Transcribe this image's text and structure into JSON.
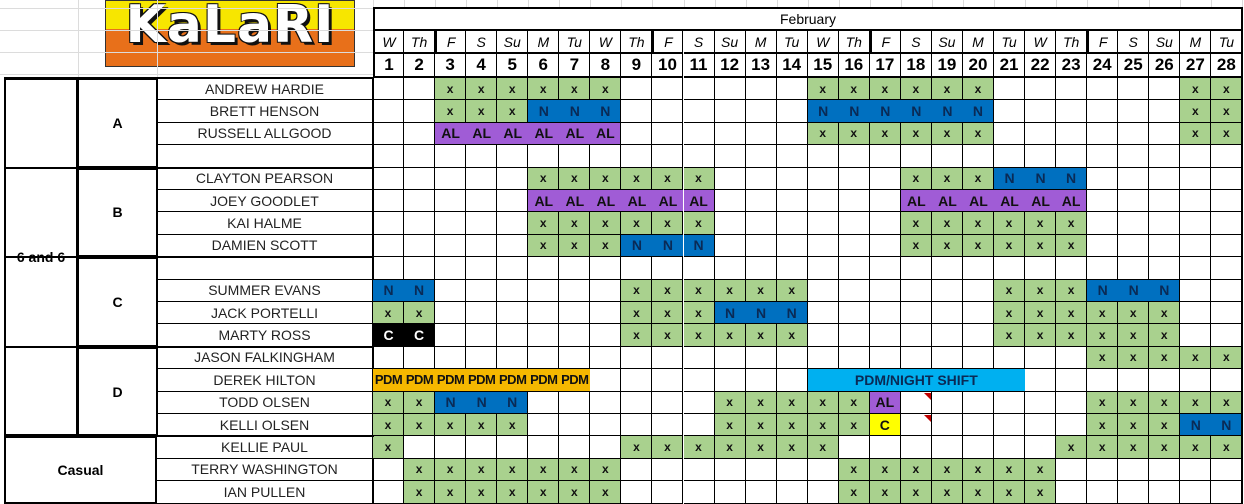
{
  "logo_text": "KaLaRI",
  "month": "February",
  "days_of_week": [
    "W",
    "Th",
    "F",
    "S",
    "Su",
    "M",
    "Tu",
    "W",
    "Th",
    "F",
    "S",
    "Su",
    "M",
    "Tu",
    "W",
    "Th",
    "F",
    "S",
    "Su",
    "M",
    "Tu",
    "W",
    "Th",
    "F",
    "S",
    "Su",
    "M",
    "Tu"
  ],
  "day_numbers": [
    "1",
    "2",
    "3",
    "4",
    "5",
    "6",
    "7",
    "8",
    "9",
    "10",
    "11",
    "12",
    "13",
    "14",
    "15",
    "16",
    "17",
    "18",
    "19",
    "20",
    "21",
    "22",
    "23",
    "24",
    "25",
    "26",
    "27",
    "28"
  ],
  "colors": {
    "x": "#a9d18e",
    "N": "#0070c0",
    "AL": "#a05cd6",
    "PDM": "#f5b800",
    "PDM_NIGHT": "#00b0f0",
    "C_black": "#000000",
    "C_yellow": "#ffff00",
    "comment": "#c00000"
  },
  "groups": [
    {
      "label": "6 and 6",
      "rows": [
        0,
        15
      ]
    },
    {
      "label": "Casual",
      "rows": [
        16,
        18
      ]
    }
  ],
  "teams": [
    {
      "label": "A",
      "rows": [
        0,
        3
      ]
    },
    {
      "label": "B",
      "rows": [
        4,
        7
      ]
    },
    {
      "label": "C",
      "rows": [
        8,
        11
      ]
    },
    {
      "label": "D",
      "rows": [
        12,
        15
      ]
    }
  ],
  "rows": [
    {
      "name": "ANDREW HARDIE",
      "runs": [
        {
          "from": 3,
          "to": 8,
          "v": "x",
          "c": "x"
        },
        {
          "from": 15,
          "to": 20,
          "v": "x",
          "c": "x"
        },
        {
          "from": 27,
          "to": 28,
          "v": "x",
          "c": "x"
        }
      ]
    },
    {
      "name": "BRETT HENSON",
      "runs": [
        {
          "from": 3,
          "to": 5,
          "v": "x",
          "c": "x"
        },
        {
          "from": 6,
          "to": 8,
          "v": "N",
          "c": "N"
        },
        {
          "from": 15,
          "to": 20,
          "v": "N",
          "c": "N"
        },
        {
          "from": 27,
          "to": 28,
          "v": "x",
          "c": "x"
        }
      ]
    },
    {
      "name": "RUSSELL ALLGOOD",
      "runs": [
        {
          "from": 3,
          "to": 8,
          "v": "AL",
          "c": "AL"
        },
        {
          "from": 15,
          "to": 20,
          "v": "x",
          "c": "x"
        },
        {
          "from": 27,
          "to": 28,
          "v": "x",
          "c": "x"
        }
      ]
    },
    {
      "name": "",
      "runs": []
    },
    {
      "name": "CLAYTON PEARSON",
      "runs": [
        {
          "from": 6,
          "to": 11,
          "v": "x",
          "c": "x"
        },
        {
          "from": 18,
          "to": 20,
          "v": "x",
          "c": "x"
        },
        {
          "from": 21,
          "to": 23,
          "v": "N",
          "c": "N"
        }
      ]
    },
    {
      "name": "JOEY GOODLET",
      "runs": [
        {
          "from": 6,
          "to": 11,
          "v": "AL",
          "c": "AL"
        },
        {
          "from": 18,
          "to": 23,
          "v": "AL",
          "c": "AL"
        }
      ]
    },
    {
      "name": "KAI HALME",
      "runs": [
        {
          "from": 6,
          "to": 11,
          "v": "x",
          "c": "x"
        },
        {
          "from": 18,
          "to": 23,
          "v": "x",
          "c": "x"
        }
      ]
    },
    {
      "name": "DAMIEN SCOTT",
      "runs": [
        {
          "from": 6,
          "to": 8,
          "v": "x",
          "c": "x"
        },
        {
          "from": 9,
          "to": 11,
          "v": "N",
          "c": "N"
        },
        {
          "from": 18,
          "to": 23,
          "v": "x",
          "c": "x"
        }
      ]
    },
    {
      "name": "",
      "runs": []
    },
    {
      "name": "SUMMER EVANS",
      "runs": [
        {
          "from": 1,
          "to": 2,
          "v": "N",
          "c": "N"
        },
        {
          "from": 9,
          "to": 14,
          "v": "x",
          "c": "x"
        },
        {
          "from": 21,
          "to": 23,
          "v": "x",
          "c": "x"
        },
        {
          "from": 24,
          "to": 26,
          "v": "N",
          "c": "N"
        }
      ]
    },
    {
      "name": "JACK PORTELLI",
      "runs": [
        {
          "from": 1,
          "to": 2,
          "v": "x",
          "c": "x"
        },
        {
          "from": 9,
          "to": 11,
          "v": "x",
          "c": "x"
        },
        {
          "from": 12,
          "to": 14,
          "v": "N",
          "c": "N"
        },
        {
          "from": 21,
          "to": 26,
          "v": "x",
          "c": "x"
        }
      ]
    },
    {
      "name": "MARTY ROSS",
      "runs": [
        {
          "from": 1,
          "to": 2,
          "v": "C",
          "c": "C_black"
        },
        {
          "from": 9,
          "to": 14,
          "v": "x",
          "c": "x"
        },
        {
          "from": 21,
          "to": 26,
          "v": "x",
          "c": "x"
        }
      ]
    },
    {
      "name": "JASON FALKINGHAM",
      "runs": [
        {
          "from": 24,
          "to": 28,
          "v": "x",
          "c": "x"
        }
      ]
    },
    {
      "name": "DEREK HILTON",
      "runs": [
        {
          "from": 1,
          "to": 7,
          "v": "PDM",
          "c": "PDM"
        },
        {
          "from": 15,
          "to": 21,
          "v": "PDM/NIGHT SHIFT",
          "c": "PDM_NIGHT",
          "merged": true
        }
      ]
    },
    {
      "name": "TODD OLSEN",
      "runs": [
        {
          "from": 1,
          "to": 2,
          "v": "x",
          "c": "x"
        },
        {
          "from": 3,
          "to": 5,
          "v": "N",
          "c": "N"
        },
        {
          "from": 12,
          "to": 16,
          "v": "x",
          "c": "x"
        },
        {
          "from": 17,
          "to": 17,
          "v": "AL",
          "c": "AL"
        },
        {
          "from": 24,
          "to": 28,
          "v": "x",
          "c": "x"
        }
      ],
      "comment_day": 18
    },
    {
      "name": "KELLI OLSEN",
      "runs": [
        {
          "from": 1,
          "to": 5,
          "v": "x",
          "c": "x"
        },
        {
          "from": 12,
          "to": 16,
          "v": "x",
          "c": "x"
        },
        {
          "from": 17,
          "to": 17,
          "v": "C",
          "c": "C_yellow"
        },
        {
          "from": 24,
          "to": 26,
          "v": "x",
          "c": "x"
        },
        {
          "from": 27,
          "to": 28,
          "v": "N",
          "c": "N"
        }
      ],
      "comment_day": 18
    },
    {
      "name": "KELLIE PAUL",
      "runs": [
        {
          "from": 1,
          "to": 1,
          "v": "x",
          "c": "x"
        },
        {
          "from": 9,
          "to": 15,
          "v": "x",
          "c": "x"
        },
        {
          "from": 23,
          "to": 28,
          "v": "x",
          "c": "x"
        }
      ]
    },
    {
      "name": "TERRY WASHINGTON",
      "runs": [
        {
          "from": 2,
          "to": 8,
          "v": "x",
          "c": "x"
        },
        {
          "from": 16,
          "to": 22,
          "v": "x",
          "c": "x"
        }
      ]
    },
    {
      "name": "IAN PULLEN",
      "runs": [
        {
          "from": 2,
          "to": 8,
          "v": "x",
          "c": "x"
        },
        {
          "from": 16,
          "to": 22,
          "v": "x",
          "c": "x"
        }
      ]
    }
  ]
}
